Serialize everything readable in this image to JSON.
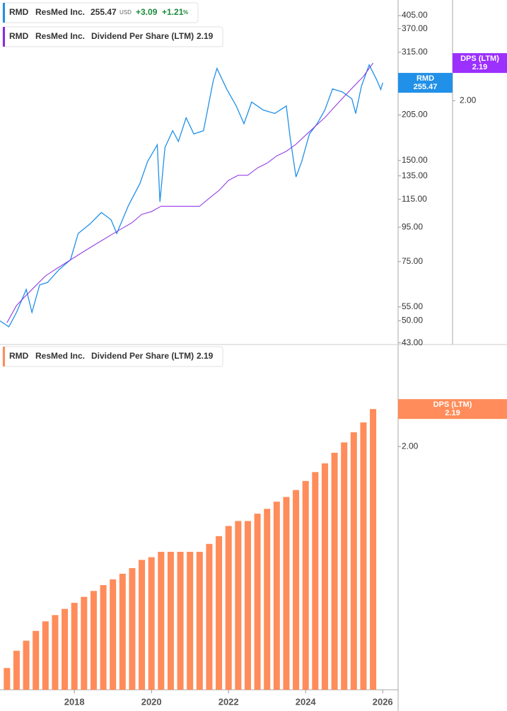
{
  "chart_data": [
    {
      "type": "line",
      "log_scale": true,
      "xlim": [
        2016.07,
        2026.4
      ],
      "ylim": [
        42.5,
        450.6
      ],
      "yticks": [
        {
          "value": 43,
          "label": "43.00"
        },
        {
          "value": 50,
          "label": "50.00"
        },
        {
          "value": 55,
          "label": "55.00"
        },
        {
          "value": 75,
          "label": "75.00"
        },
        {
          "value": 95,
          "label": "95.00"
        },
        {
          "value": 115,
          "label": "115.00"
        },
        {
          "value": 135,
          "label": "135.00"
        },
        {
          "value": 150,
          "label": "150.00"
        },
        {
          "value": 205,
          "label": "205.00"
        },
        {
          "value": 315,
          "label": "315.00"
        },
        {
          "value": 370,
          "label": "370.00"
        },
        {
          "value": 405,
          "label": "405.00"
        }
      ],
      "y2lim": [
        1.11,
        2.55
      ],
      "y2ticks": [
        {
          "value": 2,
          "label": "2.00"
        }
      ],
      "series": [
        {
          "name": "RMD",
          "company": "ResMed Inc.",
          "currency": "USD",
          "change": "+3.09",
          "change_percent": "+1.21",
          "percent_sign": "%",
          "color": "#2190e8",
          "x": [
            2016.07,
            2016.3,
            2016.5,
            2016.75,
            2016.9,
            2017.1,
            2017.3,
            2017.6,
            2017.9,
            2018.1,
            2018.4,
            2018.7,
            2018.95,
            2019.1,
            2019.4,
            2019.7,
            2019.9,
            2020.15,
            2020.22,
            2020.35,
            2020.55,
            2020.7,
            2020.9,
            2021.1,
            2021.35,
            2021.6,
            2021.7,
            2021.95,
            2022.2,
            2022.4,
            2022.6,
            2022.9,
            2023.2,
            2023.5,
            2023.6,
            2023.75,
            2023.9,
            2024.1,
            2024.3,
            2024.5,
            2024.7,
            2024.95,
            2025.2,
            2025.3,
            2025.45,
            2025.65,
            2025.85,
            2025.95,
            2026.0
          ],
          "values": [
            50,
            48,
            53,
            62,
            53,
            64,
            65,
            71,
            76,
            91,
            97,
            105,
            100,
            91,
            110,
            128,
            149,
            167,
            113,
            164,
            184,
            171,
            201,
            180,
            184,
            258,
            282,
            245,
            218,
            193,
            224,
            212,
            207,
            218,
            175,
            134,
            149,
            180,
            193,
            212,
            245,
            240,
            229,
            207,
            250,
            289,
            260,
            244,
            255.47
          ]
        },
        {
          "name": "RMD",
          "company": "ResMed Inc.",
          "metric": "Dividend Per Share (LTM)",
          "badge_label": "DPS (LTM)",
          "color": "#8a2be2",
          "badge_color": "#9b30ff",
          "axis": "y2",
          "x": [
            2016.25,
            2016.5,
            2016.75,
            2017,
            2017.25,
            2017.5,
            2017.75,
            2018,
            2018.25,
            2018.5,
            2018.75,
            2019,
            2019.25,
            2019.5,
            2019.75,
            2020,
            2020.25,
            2020.5,
            2020.75,
            2021,
            2021.25,
            2021.5,
            2021.75,
            2022,
            2022.25,
            2022.5,
            2022.75,
            2023,
            2023.25,
            2023.5,
            2023.75,
            2024,
            2024.25,
            2024.5,
            2024.75,
            2025,
            2025.25,
            2025.5,
            2025.75
          ],
          "values": [
            1.17,
            1.22,
            1.25,
            1.28,
            1.31,
            1.33,
            1.35,
            1.37,
            1.39,
            1.41,
            1.43,
            1.45,
            1.47,
            1.49,
            1.52,
            1.53,
            1.55,
            1.55,
            1.55,
            1.55,
            1.55,
            1.58,
            1.61,
            1.65,
            1.67,
            1.67,
            1.7,
            1.72,
            1.75,
            1.77,
            1.8,
            1.84,
            1.88,
            1.92,
            1.97,
            2.02,
            2.07,
            2.12,
            2.19
          ]
        }
      ]
    },
    {
      "type": "bar",
      "log_scale": true,
      "xlim": [
        2016.07,
        2026.4
      ],
      "xticks": [
        2018,
        2020,
        2022,
        2024,
        2026
      ],
      "ylim": [
        1.11,
        2.56
      ],
      "yticks": [
        {
          "value": 2,
          "label": "2.00"
        }
      ],
      "series": [
        {
          "name": "RMD",
          "company": "ResMed Inc.",
          "metric": "Dividend Per Share (LTM)",
          "badge_label": "DPS (LTM)",
          "color": "#ff8c5a",
          "x": [
            2016.25,
            2016.5,
            2016.75,
            2017,
            2017.25,
            2017.5,
            2017.75,
            2018,
            2018.25,
            2018.5,
            2018.75,
            2019,
            2019.25,
            2019.5,
            2019.75,
            2020,
            2020.25,
            2020.5,
            2020.75,
            2021,
            2021.25,
            2021.5,
            2021.75,
            2022,
            2022.25,
            2022.5,
            2022.75,
            2023,
            2023.25,
            2023.5,
            2023.75,
            2024,
            2024.25,
            2024.5,
            2024.75,
            2025,
            2025.25,
            2025.5,
            2025.75
          ],
          "values": [
            1.17,
            1.22,
            1.25,
            1.28,
            1.31,
            1.33,
            1.35,
            1.37,
            1.39,
            1.41,
            1.43,
            1.45,
            1.47,
            1.49,
            1.52,
            1.53,
            1.55,
            1.55,
            1.55,
            1.55,
            1.55,
            1.58,
            1.61,
            1.65,
            1.67,
            1.67,
            1.7,
            1.72,
            1.75,
            1.77,
            1.8,
            1.84,
            1.88,
            1.92,
            1.97,
            2.02,
            2.07,
            2.12,
            2.19
          ]
        }
      ]
    }
  ]
}
